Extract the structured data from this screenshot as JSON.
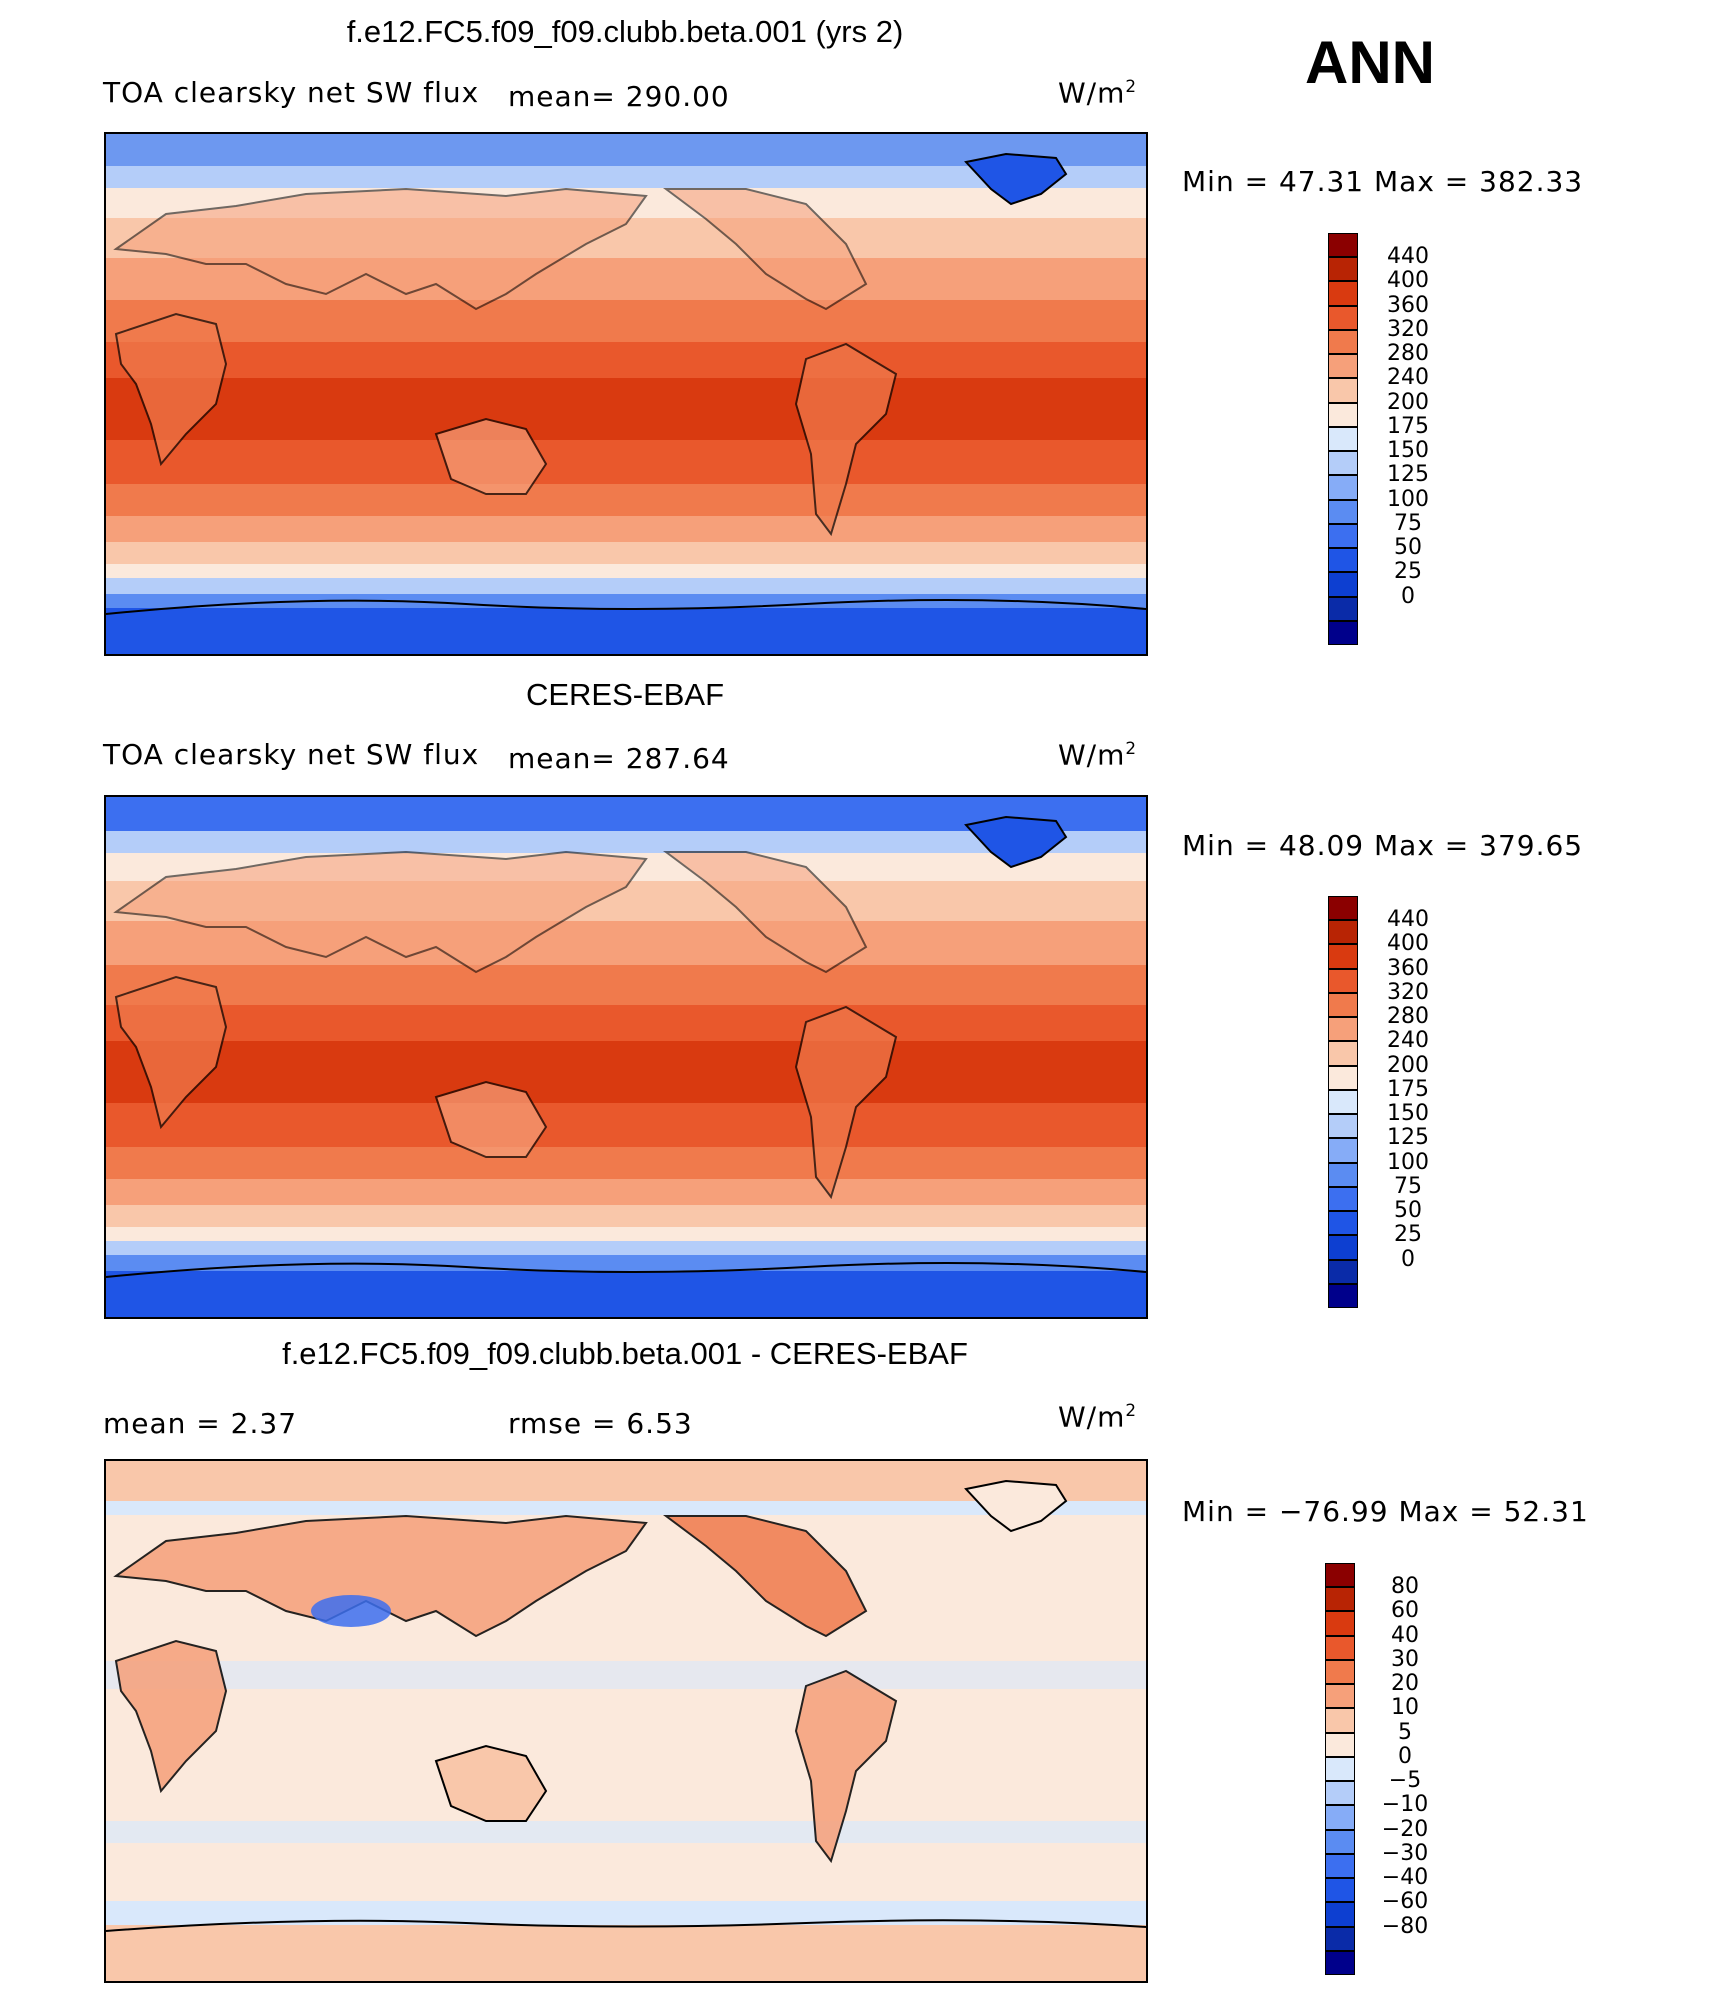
{
  "season": "ANN",
  "panels": [
    {
      "title": "f.e12.FC5.f09_f09.clubb.beta.001 (yrs 2)",
      "left_label": "TOA clearsky net SW flux",
      "mean_label": "mean= 290.00",
      "units": "W/m",
      "units_exp": "2",
      "min_max": "Min =   47.31  Max  =  382.33"
    },
    {
      "title": "CERES-EBAF",
      "left_label": "TOA clearsky net SW flux",
      "mean_label": "mean= 287.64",
      "units": "W/m",
      "units_exp": "2",
      "min_max": "Min =   48.09  Max  =  379.65"
    },
    {
      "title": "f.e12.FC5.f09_f09.clubb.beta.001 - CERES-EBAF",
      "mean_label": "mean  =      2.37",
      "rmse_label": "rmse  =     6.53",
      "units": "W/m",
      "units_exp": "2",
      "min_max": "Min  =  −76.99  Max  =    52.31"
    }
  ],
  "chart_data": [
    {
      "type": "heatmap",
      "title": "f.e12.FC5.f09_f09.clubb.beta.001 (yrs 2)",
      "variable": "TOA clearsky net SW flux",
      "units": "W/m2",
      "mean": 290.0,
      "min": 47.31,
      "max": 382.33,
      "levels": [
        "0",
        "25",
        "50",
        "75",
        "100",
        "125",
        "150",
        "175",
        "200",
        "240",
        "280",
        "320",
        "360",
        "400",
        "440"
      ],
      "colors": [
        "#00008b",
        "#0a2ba8",
        "#0d3fd1",
        "#1f55e6",
        "#3c6ff0",
        "#5b8cf2",
        "#86acf7",
        "#b4cdf9",
        "#d9e8fb",
        "#fbe9dc",
        "#f9c7aa",
        "#f6a07a",
        "#f07a4c",
        "#e9582c",
        "#d93a10",
        "#b82404",
        "#8b0000"
      ]
    },
    {
      "type": "heatmap",
      "title": "CERES-EBAF",
      "variable": "TOA clearsky net SW flux",
      "units": "W/m2",
      "mean": 287.64,
      "min": 48.09,
      "max": 379.65,
      "levels": [
        "0",
        "25",
        "50",
        "75",
        "100",
        "125",
        "150",
        "175",
        "200",
        "240",
        "280",
        "320",
        "360",
        "400",
        "440"
      ],
      "colors": [
        "#00008b",
        "#0a2ba8",
        "#0d3fd1",
        "#1f55e6",
        "#3c6ff0",
        "#5b8cf2",
        "#86acf7",
        "#b4cdf9",
        "#d9e8fb",
        "#fbe9dc",
        "#f9c7aa",
        "#f6a07a",
        "#f07a4c",
        "#e9582c",
        "#d93a10",
        "#b82404",
        "#8b0000"
      ]
    },
    {
      "type": "heatmap",
      "title": "f.e12.FC5.f09_f09.clubb.beta.001 - CERES-EBAF",
      "units": "W/m2",
      "mean": 2.37,
      "rmse": 6.53,
      "min": -76.99,
      "max": 52.31,
      "levels": [
        "−80",
        "−60",
        "−40",
        "−30",
        "−20",
        "−10",
        "−5",
        "0",
        "5",
        "10",
        "20",
        "30",
        "40",
        "60",
        "80"
      ],
      "colors": [
        "#00008b",
        "#0a2ba8",
        "#0d3fd1",
        "#1f55e6",
        "#3c6ff0",
        "#5b8cf2",
        "#86acf7",
        "#b4cdf9",
        "#d9e8fb",
        "#fbe9dc",
        "#f9c7aa",
        "#f6a07a",
        "#f07a4c",
        "#e9582c",
        "#d93a10",
        "#b82404",
        "#8b0000"
      ]
    }
  ]
}
